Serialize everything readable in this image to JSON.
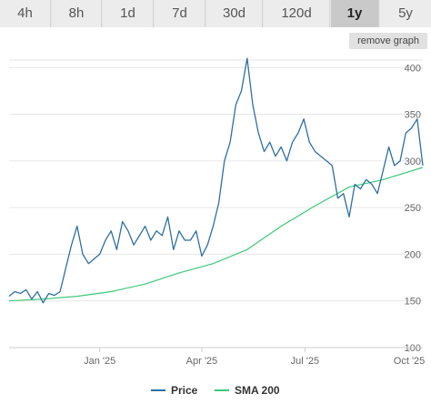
{
  "tabs": [
    {
      "label": "4h",
      "active": false
    },
    {
      "label": "8h",
      "active": false
    },
    {
      "label": "1d",
      "active": false
    },
    {
      "label": "7d",
      "active": false
    },
    {
      "label": "30d",
      "active": false
    },
    {
      "label": "120d",
      "active": false
    },
    {
      "label": "1y",
      "active": true
    },
    {
      "label": "5y",
      "active": false
    }
  ],
  "remove_graph_label": "remove graph",
  "colors": {
    "price": "#2f6fa4",
    "sma": "#3cc976",
    "grid": "#e6e6e6",
    "axis_text": "#666666"
  },
  "chart_data": {
    "type": "line",
    "ylim": [
      100,
      410
    ],
    "yticks": [
      100,
      150,
      200,
      250,
      300,
      350,
      400
    ],
    "xlim": [
      "2024-10-13",
      "2025-10-13"
    ],
    "xticks": [
      {
        "date": "2025-01-01",
        "label": "Jan '25"
      },
      {
        "date": "2025-04-01",
        "label": "Apr '25"
      },
      {
        "date": "2025-07-01",
        "label": "Jul '25"
      },
      {
        "date": "2025-10-01",
        "label": "Oct '25"
      }
    ],
    "legend": "bottom-center",
    "grid": true,
    "series": [
      {
        "name": "Price",
        "x": [
          "2024-10-13",
          "2024-10-18",
          "2024-10-23",
          "2024-10-28",
          "2024-11-02",
          "2024-11-07",
          "2024-11-12",
          "2024-11-17",
          "2024-11-22",
          "2024-11-27",
          "2024-12-02",
          "2024-12-07",
          "2024-12-12",
          "2024-12-17",
          "2024-12-22",
          "2024-12-27",
          "2025-01-01",
          "2025-01-06",
          "2025-01-11",
          "2025-01-16",
          "2025-01-21",
          "2025-01-26",
          "2025-01-31",
          "2025-02-05",
          "2025-02-10",
          "2025-02-15",
          "2025-02-20",
          "2025-02-25",
          "2025-03-02",
          "2025-03-07",
          "2025-03-12",
          "2025-03-17",
          "2025-03-22",
          "2025-03-27",
          "2025-04-01",
          "2025-04-06",
          "2025-04-11",
          "2025-04-16",
          "2025-04-21",
          "2025-04-26",
          "2025-05-01",
          "2025-05-06",
          "2025-05-11",
          "2025-05-16",
          "2025-05-21",
          "2025-05-26",
          "2025-05-31",
          "2025-06-05",
          "2025-06-10",
          "2025-06-15",
          "2025-06-20",
          "2025-06-25",
          "2025-06-30",
          "2025-07-05",
          "2025-07-10",
          "2025-07-15",
          "2025-07-20",
          "2025-07-25",
          "2025-07-30",
          "2025-08-04",
          "2025-08-09",
          "2025-08-14",
          "2025-08-19",
          "2025-08-24",
          "2025-08-29",
          "2025-09-03",
          "2025-09-08",
          "2025-09-13",
          "2025-09-18",
          "2025-09-23",
          "2025-09-28",
          "2025-10-03",
          "2025-10-08",
          "2025-10-13"
        ],
        "values": [
          155,
          160,
          158,
          162,
          152,
          160,
          148,
          158,
          156,
          160,
          185,
          210,
          230,
          200,
          190,
          195,
          200,
          215,
          225,
          205,
          235,
          225,
          210,
          220,
          230,
          215,
          225,
          220,
          240,
          205,
          225,
          215,
          215,
          225,
          198,
          210,
          230,
          255,
          300,
          320,
          360,
          375,
          410,
          360,
          330,
          310,
          320,
          305,
          315,
          300,
          320,
          330,
          345,
          320,
          310,
          305,
          300,
          295,
          260,
          265,
          240,
          275,
          270,
          280,
          275,
          265,
          290,
          315,
          295,
          300,
          330,
          335,
          345,
          295
        ],
        "color": "#2f6fa4"
      },
      {
        "name": "SMA 200",
        "x": [
          "2024-10-13",
          "2024-11-12",
          "2024-12-12",
          "2025-01-11",
          "2025-02-10",
          "2025-03-12",
          "2025-04-11",
          "2025-05-11",
          "2025-06-10",
          "2025-07-10",
          "2025-08-09",
          "2025-09-08",
          "2025-10-13"
        ],
        "values": [
          150,
          152,
          155,
          160,
          168,
          180,
          190,
          205,
          230,
          252,
          272,
          280,
          293
        ],
        "color": "#3cc976"
      }
    ]
  }
}
